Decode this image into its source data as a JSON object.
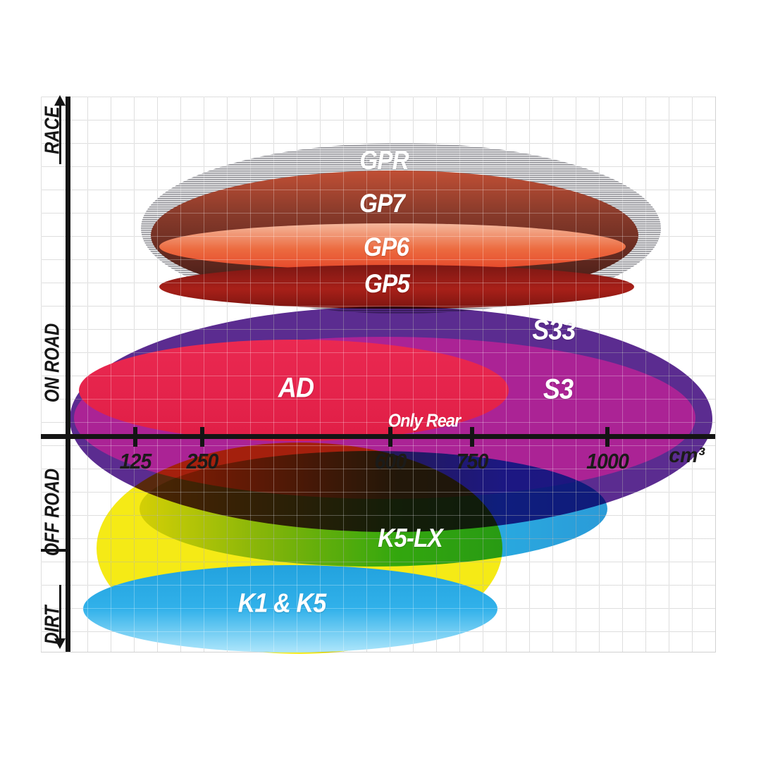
{
  "page": {
    "background": "#ffffff",
    "grid_color": "#d2d2d2",
    "axis_color": "#141414"
  },
  "axes": {
    "x_unit": "cm³",
    "x_ticks": [
      "125",
      "250",
      "600",
      "750",
      "1000"
    ],
    "y_categories": [
      "RACE",
      "ON ROAD",
      "OFF ROAD",
      "DIRT"
    ],
    "y_top_arrow": "up",
    "y_bottom_arrow": "down"
  },
  "chart_data": {
    "type": "bubble",
    "title": "",
    "x_axis": {
      "label": "cm³",
      "ticks": [
        125,
        250,
        600,
        750,
        1000
      ],
      "scale": "non-linear"
    },
    "y_axis": {
      "categories_top_to_bottom": [
        "RACE",
        "ON ROAD",
        "OFF ROAD",
        "DIRT"
      ]
    },
    "legend_position": "none",
    "grid": true,
    "products": [
      {
        "id": "gpr",
        "label": "GPR",
        "category": "RACE",
        "fill": "#9a9a9e",
        "pattern": "horizontal-stripes",
        "cc_range_approx": [
          130,
          1150
        ],
        "note": ""
      },
      {
        "id": "gp7",
        "label": "GP7",
        "category": "RACE",
        "fill": "#8a3b2b",
        "pattern": "solid-gradient",
        "cc_range_approx": [
          145,
          1080
        ],
        "note": ""
      },
      {
        "id": "gp6",
        "label": "GP6",
        "category": "RACE",
        "fill": "#ec6b40",
        "pattern": "solid-gradient",
        "cc_range_approx": [
          155,
          1040
        ],
        "note": ""
      },
      {
        "id": "gp5",
        "label": "GP5",
        "category": "RACE",
        "fill": "#a82019",
        "pattern": "solid-gradient",
        "cc_range_approx": [
          155,
          1050
        ],
        "note": ""
      },
      {
        "id": "s33",
        "label": "S33",
        "category": "ON ROAD",
        "fill": "#5b2c90",
        "pattern": "solid",
        "cc_range_approx": [
          50,
          1200
        ],
        "note": ""
      },
      {
        "id": "s3",
        "label": "S3",
        "category": "ON ROAD",
        "fill": "#ab2395",
        "pattern": "solid",
        "cc_range_approx": [
          55,
          1150
        ],
        "note": ""
      },
      {
        "id": "ad",
        "label": "AD",
        "category": "ON ROAD",
        "fill": "#e6224b",
        "pattern": "solid",
        "cc_range_approx": [
          60,
          820
        ],
        "note": "Only Rear"
      },
      {
        "id": "dirt-bg",
        "label": "",
        "category": "OFF ROAD / DIRT",
        "fill": "#f5ea16",
        "pattern": "solid",
        "cc_range_approx": [
          45,
          800
        ],
        "note": ""
      },
      {
        "id": "k5lx",
        "label": "K5-LX",
        "category": "OFF ROAD",
        "fill": "#35b69f",
        "pattern": "gradient-green-cyan",
        "cc_range_approx": [
          130,
          1000
        ],
        "note": ""
      },
      {
        "id": "k1k5",
        "label": "K1 & K5",
        "category": "DIRT",
        "fill": "#29abe2",
        "pattern": "solid-gradient",
        "cc_range_approx": [
          40,
          790
        ],
        "note": ""
      }
    ]
  }
}
